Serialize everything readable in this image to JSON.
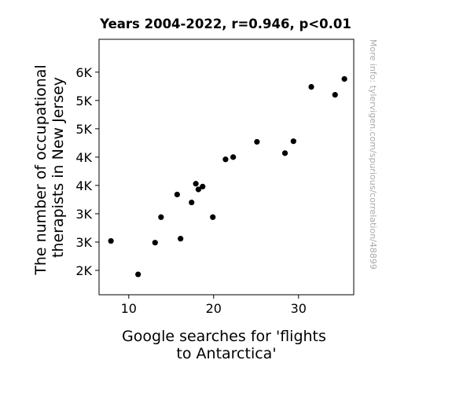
{
  "chart_data": {
    "type": "scatter",
    "title": "Years 2004-2022, r=0.946, p<0.01",
    "xlabel_lines": [
      "Google searches for 'flights",
      "to Antarctica'"
    ],
    "ylabel_lines": [
      "The number of occupational",
      "therapists in New Jersey"
    ],
    "xlim": [
      6.5,
      36.5
    ],
    "ylim": [
      1570,
      6080
    ],
    "x_ticks": [
      {
        "value": 10,
        "label": "10"
      },
      {
        "value": 20,
        "label": "20"
      },
      {
        "value": 30,
        "label": "30"
      }
    ],
    "y_ticks": [
      {
        "value": 2000,
        "label": "2K"
      },
      {
        "value": 2500,
        "label": "3K"
      },
      {
        "value": 3000,
        "label": "3K"
      },
      {
        "value": 3500,
        "label": "4K"
      },
      {
        "value": 4000,
        "label": "4K"
      },
      {
        "value": 4500,
        "label": "5K"
      },
      {
        "value": 5000,
        "label": "5K"
      },
      {
        "value": 5500,
        "label": "6K"
      }
    ],
    "points": [
      {
        "x": 7.9,
        "y": 2520
      },
      {
        "x": 11.1,
        "y": 1930
      },
      {
        "x": 13.1,
        "y": 2490
      },
      {
        "x": 13.8,
        "y": 2940
      },
      {
        "x": 15.7,
        "y": 3340
      },
      {
        "x": 16.1,
        "y": 2560
      },
      {
        "x": 17.4,
        "y": 3200
      },
      {
        "x": 17.9,
        "y": 3530
      },
      {
        "x": 18.2,
        "y": 3430
      },
      {
        "x": 18.7,
        "y": 3480
      },
      {
        "x": 19.9,
        "y": 2940
      },
      {
        "x": 21.4,
        "y": 3960
      },
      {
        "x": 22.3,
        "y": 4000
      },
      {
        "x": 25.1,
        "y": 4270
      },
      {
        "x": 28.4,
        "y": 4070
      },
      {
        "x": 29.4,
        "y": 4280
      },
      {
        "x": 31.5,
        "y": 5240
      },
      {
        "x": 34.3,
        "y": 5100
      },
      {
        "x": 35.4,
        "y": 5380
      }
    ],
    "marker_color": "#000000",
    "grid": false
  },
  "watermark": "More info: tylervigen.com/spurious/correlation/48899"
}
